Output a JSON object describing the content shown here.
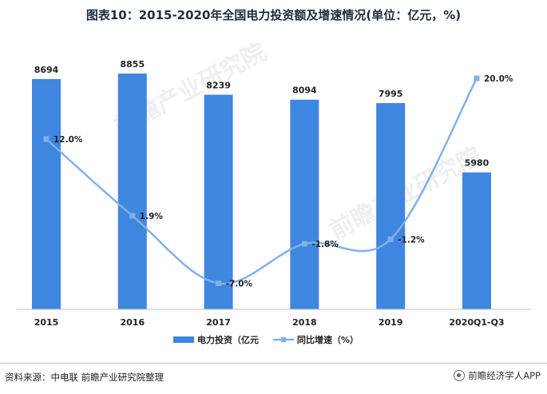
{
  "title": "图表10：2015-2020年全国电力投资额及增速情况(单位：亿元，%)",
  "source": "资料来源：中电联 前瞻产业研究院整理",
  "brand": "前瞻经济学人APP",
  "watermark": "前瞻产业研究院",
  "colors": {
    "bar": "#3f86e0",
    "line": "#7fb1ea",
    "axis": "#bfbfbf",
    "text": "#222222"
  },
  "chart_data": {
    "type": "bar",
    "categories": [
      "2015",
      "2016",
      "2017",
      "2018",
      "2019",
      "2020Q1-Q3"
    ],
    "series": [
      {
        "name": "电力投资（亿元",
        "type": "bar",
        "axis": "left",
        "values": [
          8694,
          8855,
          8239,
          8094,
          7995,
          5980
        ]
      },
      {
        "name": "同比增速（%）",
        "type": "line",
        "axis": "right",
        "values": [
          12.0,
          1.9,
          -7.0,
          -1.8,
          -1.2,
          20.0
        ],
        "labels": [
          "12.0%",
          "1.9%",
          "-7.0%",
          "-1.8%",
          "-1.2%",
          "20.0%"
        ]
      }
    ],
    "bar_labels": [
      "8694",
      "8855",
      "8239",
      "8094",
      "7995",
      "5980"
    ],
    "legend_position": "bottom-center",
    "grid": false
  }
}
